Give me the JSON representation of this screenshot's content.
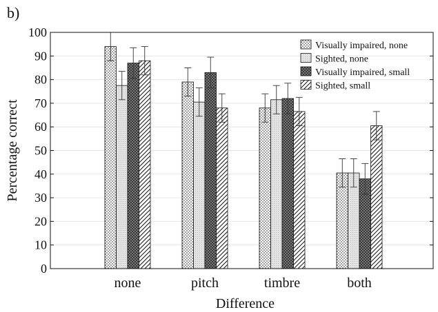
{
  "panel_label": "b)",
  "chart_data": {
    "type": "bar",
    "xlabel": "Difference",
    "ylabel": "Percentage correct",
    "ylim": [
      0,
      100
    ],
    "yticks": [
      0,
      10,
      20,
      30,
      40,
      50,
      60,
      70,
      80,
      90,
      100
    ],
    "grid": true,
    "legend_position": "top-right",
    "categories": [
      "none",
      "pitch",
      "timbre",
      "both"
    ],
    "series": [
      {
        "name": "Visually impaired, none",
        "pattern": "dots",
        "values": [
          94,
          79,
          68,
          40.5
        ],
        "error": [
          6,
          6,
          6,
          6
        ]
      },
      {
        "name": "Sighted, none",
        "pattern": "light",
        "values": [
          77.5,
          70.5,
          71.5,
          40.5
        ],
        "error": [
          6,
          6,
          6,
          6
        ]
      },
      {
        "name": "Visually impaired, small",
        "pattern": "crosshatch",
        "values": [
          87,
          83,
          72,
          38
        ],
        "error": [
          6.5,
          6.5,
          6.5,
          6.5
        ]
      },
      {
        "name": "Sighted, small",
        "pattern": "diagonal",
        "values": [
          88,
          68,
          66.5,
          60.5
        ],
        "error": [
          6,
          6,
          6,
          6
        ]
      }
    ]
  }
}
